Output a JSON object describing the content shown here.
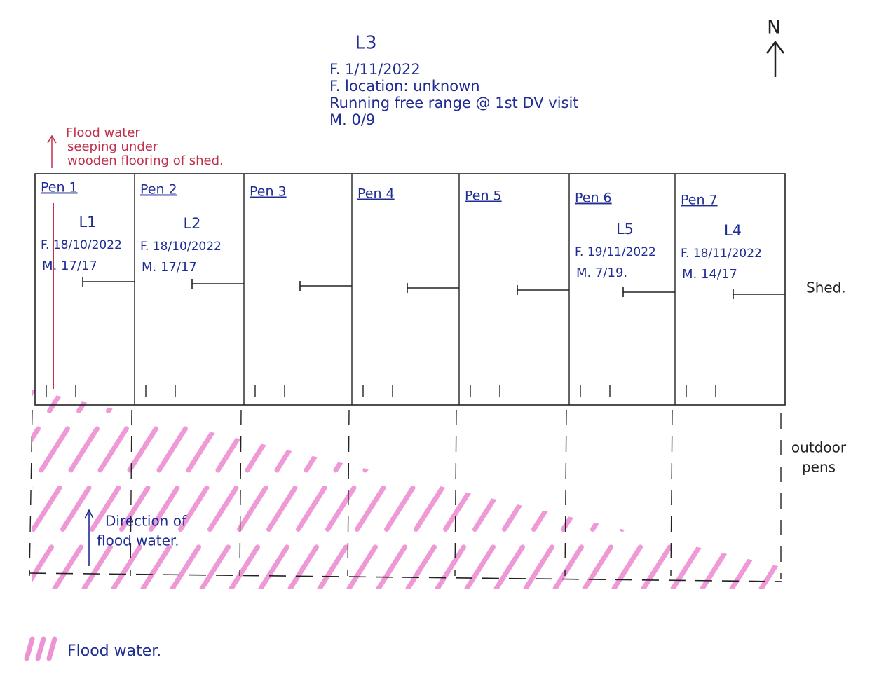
{
  "compass": "N",
  "free_range_litter": {
    "label": "L3",
    "lines": [
      "F. 1/11/2022",
      "F. location: unknown",
      "Running free range @ 1st DV visit",
      "M. 0/9"
    ]
  },
  "flood_note": [
    "Flood water",
    "seeping under",
    "wooden flooring of shed."
  ],
  "pens": [
    {
      "name": "Pen 1",
      "litter": "L1",
      "farrowed": "F. 18/10/2022",
      "mortality": "M. 17/17"
    },
    {
      "name": "Pen 2",
      "litter": "L2",
      "farrowed": "F. 18/10/2022",
      "mortality": "M. 17/17"
    },
    {
      "name": "Pen 3"
    },
    {
      "name": "Pen 4"
    },
    {
      "name": "Pen 5"
    },
    {
      "name": "Pen 6",
      "litter": "L5",
      "farrowed": "F. 19/11/2022",
      "mortality": "M. 7/19."
    },
    {
      "name": "Pen 7",
      "litter": "L4",
      "farrowed": "F. 18/11/2022",
      "mortality": "M. 14/17"
    }
  ],
  "areas": {
    "shed": "Shed.",
    "outdoor": [
      "outdoor",
      "pens"
    ]
  },
  "direction_note": [
    "Direction of",
    "flood water."
  ],
  "legend": "Flood water."
}
